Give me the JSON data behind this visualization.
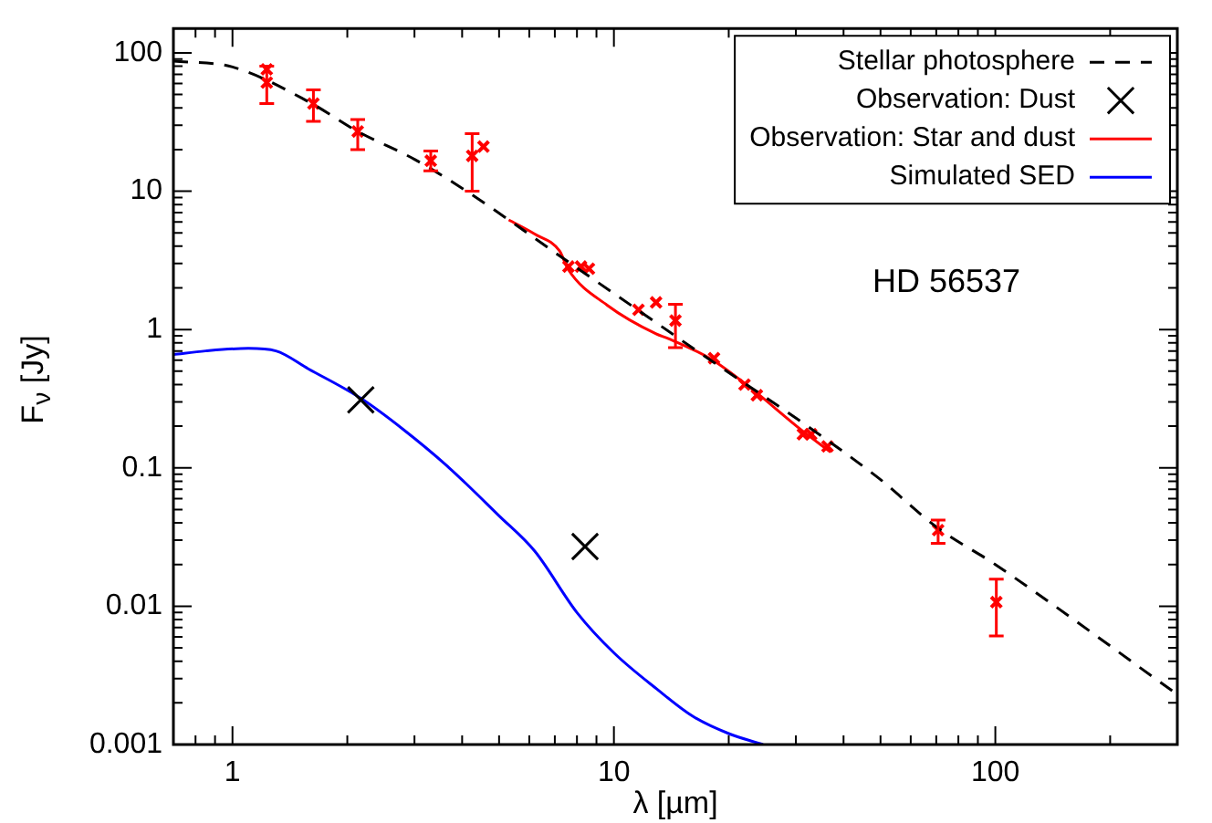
{
  "chart_data": {
    "type": "line",
    "xlabel": "λ [µm]",
    "ylabel": "F$_{ν}$ [Jy]",
    "log": "xy",
    "grid": false,
    "legend": "top right",
    "xlim": [
      0.7,
      300
    ],
    "ylim": [
      0.001,
      150
    ],
    "xticks": [
      {
        "value": 0.7,
        "label": null
      },
      {
        "value": 0.8,
        "label": null
      },
      {
        "value": 0.9,
        "label": null
      },
      1,
      {
        "value": 2,
        "label": null
      },
      {
        "value": 3,
        "label": null
      },
      {
        "value": 4,
        "label": null
      },
      {
        "value": 5,
        "label": null
      },
      {
        "value": 6,
        "label": null
      },
      {
        "value": 7,
        "label": null
      },
      {
        "value": 8,
        "label": null
      },
      {
        "value": 9,
        "label": null
      },
      10,
      {
        "value": 20,
        "label": null
      },
      {
        "value": 30,
        "label": null
      },
      {
        "value": 40,
        "label": null
      },
      {
        "value": 50,
        "label": null
      },
      {
        "value": 60,
        "label": null
      },
      {
        "value": 70,
        "label": null
      },
      {
        "value": 80,
        "label": null
      },
      {
        "value": 90,
        "label": null
      },
      100,
      {
        "value": 200,
        "label": null
      },
      {
        "value": 300,
        "label": null
      }
    ],
    "yticks": [
      0.001,
      {
        "value": 0.002,
        "label": null
      },
      {
        "value": 0.003,
        "label": null
      },
      {
        "value": 0.004,
        "label": null
      },
      {
        "value": 0.005,
        "label": null
      },
      {
        "value": 0.006,
        "label": null
      },
      {
        "value": 0.007,
        "label": null
      },
      {
        "value": 0.008,
        "label": null
      },
      {
        "value": 0.009,
        "label": null
      },
      0.01,
      {
        "value": 0.02,
        "label": null
      },
      {
        "value": 0.03,
        "label": null
      },
      {
        "value": 0.04,
        "label": null
      },
      {
        "value": 0.05,
        "label": null
      },
      {
        "value": 0.06,
        "label": null
      },
      {
        "value": 0.07,
        "label": null
      },
      {
        "value": 0.08,
        "label": null
      },
      {
        "value": 0.09,
        "label": null
      },
      0.1,
      {
        "value": 0.2,
        "label": null
      },
      {
        "value": 0.3,
        "label": null
      },
      {
        "value": 0.4,
        "label": null
      },
      {
        "value": 0.5,
        "label": null
      },
      {
        "value": 0.6,
        "label": null
      },
      {
        "value": 0.7,
        "label": null
      },
      {
        "value": 0.8,
        "label": null
      },
      {
        "value": 0.9,
        "label": null
      },
      1,
      {
        "value": 2,
        "label": null
      },
      {
        "value": 3,
        "label": null
      },
      {
        "value": 4,
        "label": null
      },
      {
        "value": 5,
        "label": null
      },
      {
        "value": 6,
        "label": null
      },
      {
        "value": 7,
        "label": null
      },
      {
        "value": 8,
        "label": null
      },
      {
        "value": 9,
        "label": null
      },
      10,
      {
        "value": 20,
        "label": null
      },
      {
        "value": 30,
        "label": null
      },
      {
        "value": 40,
        "label": null
      },
      {
        "value": 50,
        "label": null
      },
      {
        "value": 60,
        "label": null
      },
      {
        "value": 70,
        "label": null
      },
      {
        "value": 80,
        "label": null
      },
      {
        "value": 90,
        "label": null
      },
      100
    ],
    "annotations": [
      "HD 56537"
    ],
    "series": [
      {
        "name": "Stellar photosphere",
        "color": "#000000",
        "line_style": "dashed",
        "x": [
          0.7,
          1,
          1.59,
          2.13,
          3,
          4.13,
          7.7,
          15,
          48.7,
          70.4,
          100,
          300
        ],
        "values": [
          87,
          79,
          44,
          27,
          17,
          9.9,
          3.0,
          0.84,
          0.087,
          0.037,
          0.02,
          0.0023
        ]
      },
      {
        "name": "Observation: Dust",
        "type": "scatter",
        "color": "#000000",
        "marker": "cross",
        "x": [
          2.17,
          8.4
        ],
        "values": [
          0.31,
          0.027
        ]
      },
      {
        "name": "Observation: Star and dust",
        "color": "#ff0000",
        "line_style": "solid",
        "x": [
          5.3,
          6.2,
          7.2,
          7.6,
          9.6,
          12.9,
          13.9,
          18,
          22.5,
          31.3,
          37
        ],
        "values": [
          6.2,
          4.9,
          3.7,
          2.7,
          1.5,
          0.93,
          0.86,
          0.61,
          0.39,
          0.184,
          0.13
        ]
      },
      {
        "type": "scatter",
        "color": "#ff0000",
        "marker": "cross",
        "x": [
          1.23,
          1.23,
          1.63,
          2.13,
          3.31,
          4.25,
          4.55,
          7.6,
          8.2,
          8.6,
          11.6,
          12.9,
          14.5,
          18.3,
          22,
          23.7,
          31.3,
          32.9,
          36.3,
          70.8,
          100.6
        ],
        "values": [
          61,
          76,
          43,
          27,
          16.6,
          18,
          21,
          2.85,
          2.85,
          2.75,
          1.39,
          1.57,
          1.16,
          0.62,
          0.4,
          0.335,
          0.175,
          0.175,
          0.143,
          0.0355,
          0.0107
        ],
        "errors": [
          [
            43,
            80
          ],
          null,
          [
            32,
            54
          ],
          [
            20,
            33
          ],
          [
            14,
            19.5
          ],
          [
            10,
            26
          ],
          null,
          null,
          null,
          null,
          null,
          null,
          [
            0.74,
            1.52
          ],
          null,
          null,
          null,
          null,
          null,
          null,
          [
            0.0285,
            0.042
          ],
          [
            0.0061,
            0.0157
          ]
        ]
      },
      {
        "name": "Simulated SED",
        "color": "#0000ff",
        "line_style": "solid",
        "x": [
          0.7,
          0.85,
          1.1,
          1.3,
          1.58,
          2.17,
          2.8,
          3.7,
          5,
          6.2,
          8,
          10,
          13,
          16.1,
          20,
          24.6
        ],
        "values": [
          0.66,
          0.7,
          0.73,
          0.7,
          0.52,
          0.318,
          0.19,
          0.1,
          0.045,
          0.025,
          0.009,
          0.0046,
          0.0025,
          0.0016,
          0.0012,
          0.001
        ]
      }
    ]
  }
}
